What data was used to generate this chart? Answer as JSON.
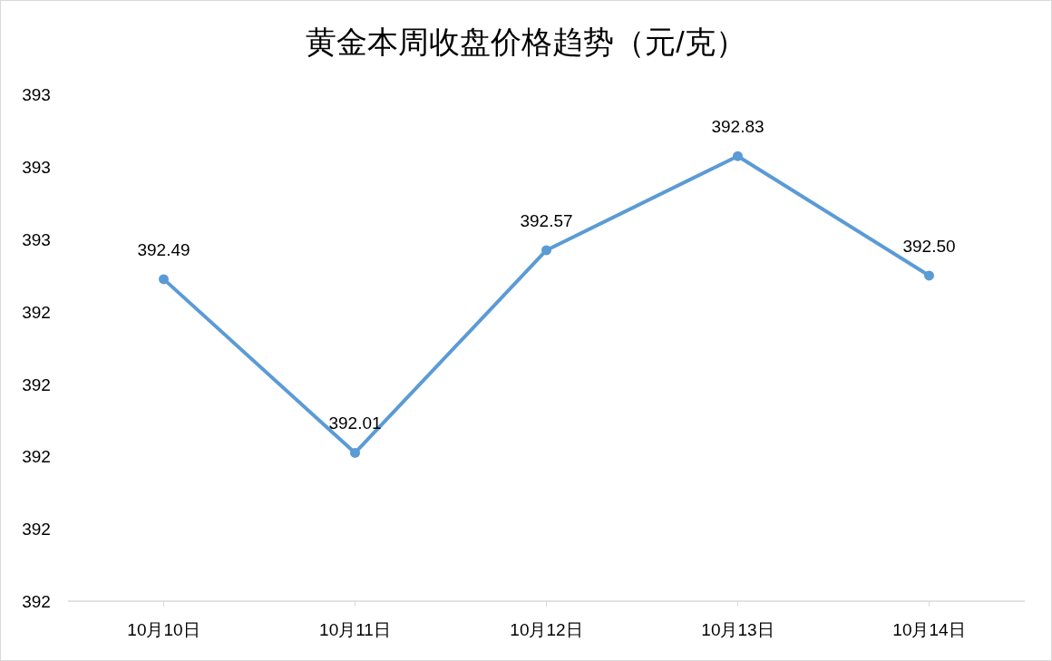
{
  "chart_data": {
    "type": "line",
    "title": "黄金本周收盘价格趋势（元/克）",
    "categories": [
      "10月10日",
      "10月11日",
      "10月12日",
      "10月13日",
      "10月14日"
    ],
    "values": [
      392.49,
      392.01,
      392.57,
      392.83,
      392.5
    ],
    "value_labels": [
      "392.49",
      "392.01",
      "392.57",
      "392.83",
      "392.50"
    ],
    "color": "#5b9bd5",
    "marker": "circle",
    "ylim": [
      391.6,
      393.0
    ],
    "yticks": [
      {
        "value": 391.6,
        "label": "392"
      },
      {
        "value": 391.8,
        "label": "392"
      },
      {
        "value": 392.0,
        "label": "392"
      },
      {
        "value": 392.2,
        "label": "392"
      },
      {
        "value": 392.4,
        "label": "392"
      },
      {
        "value": 392.6,
        "label": "393"
      },
      {
        "value": 392.8,
        "label": "393"
      },
      {
        "value": 393.0,
        "label": "393"
      }
    ]
  }
}
